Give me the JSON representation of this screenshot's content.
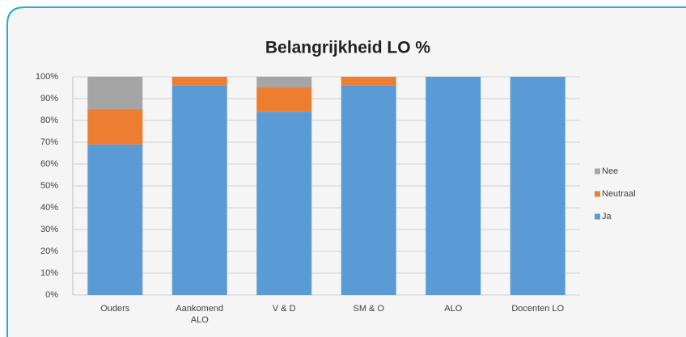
{
  "chart_data": {
    "type": "stacked_bar",
    "title": "Belangrijkheid LO %",
    "categories": [
      "Ouders",
      "Aankomend ALO",
      "V & D",
      "SM & O",
      "ALO",
      "Docenten LO"
    ],
    "series": [
      {
        "name": "Ja",
        "color": "#5b9bd5",
        "values": [
          69,
          96,
          84,
          96,
          100,
          100
        ]
      },
      {
        "name": "Neutraal",
        "color": "#ed7d31",
        "values": [
          16,
          4,
          11,
          4,
          0,
          0
        ]
      },
      {
        "name": "Nee",
        "color": "#a5a5a5",
        "values": [
          15,
          0,
          5,
          0,
          0,
          0
        ]
      }
    ],
    "ylim": [
      0,
      100
    ],
    "yticks": [
      {
        "value": 0,
        "label": "0%"
      },
      {
        "value": 10,
        "label": "10%"
      },
      {
        "value": 20,
        "label": "20%"
      },
      {
        "value": 30,
        "label": "30%"
      },
      {
        "value": 40,
        "label": "40%"
      },
      {
        "value": 50,
        "label": "50%"
      },
      {
        "value": 60,
        "label": "60%"
      },
      {
        "value": 70,
        "label": "70%"
      },
      {
        "value": 80,
        "label": "80%"
      },
      {
        "value": 90,
        "label": "90%"
      },
      {
        "value": 100,
        "label": "100%"
      }
    ],
    "grid": true,
    "legend": "right"
  }
}
